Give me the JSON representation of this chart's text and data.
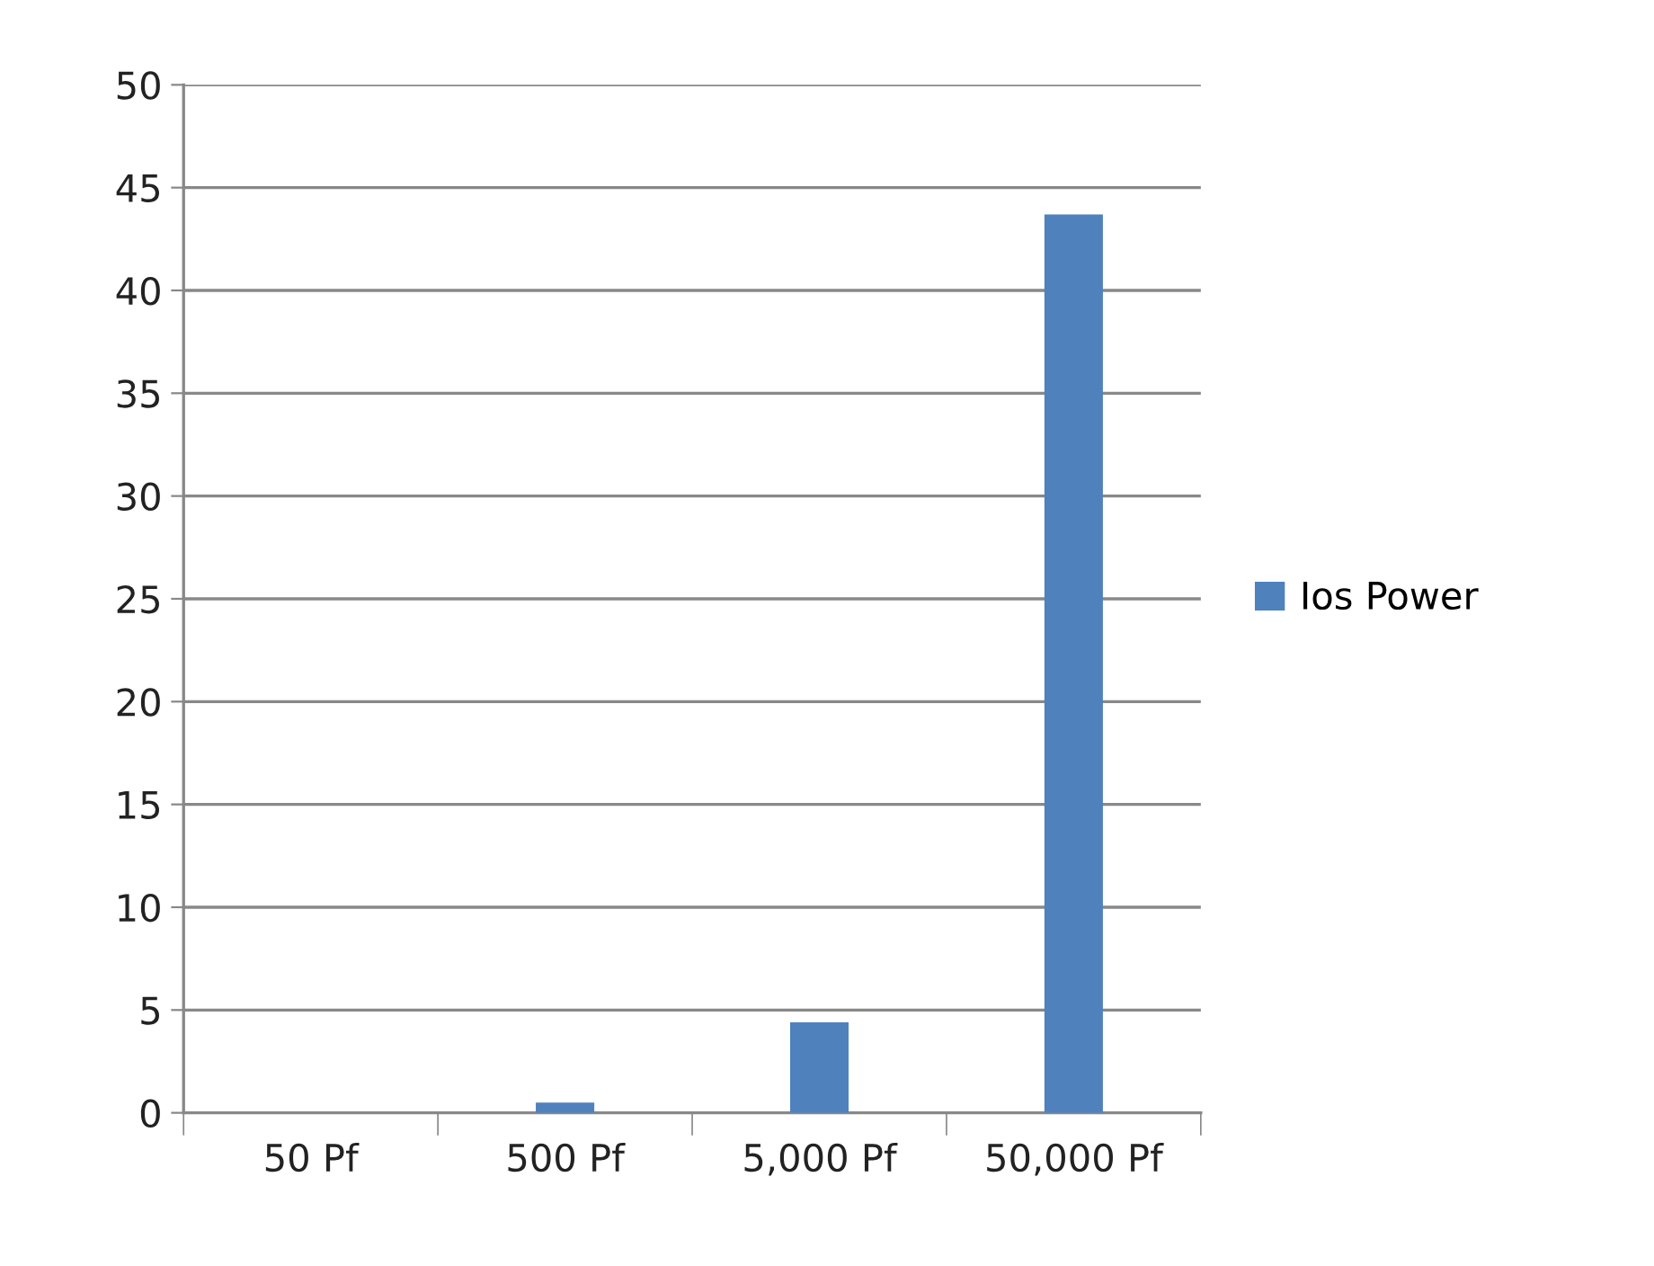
{
  "chart_data": {
    "type": "bar",
    "categories": [
      "50 Pf",
      "500 Pf",
      "5,000 Pf",
      "50,000 Pf"
    ],
    "series": [
      {
        "name": "Ios Power",
        "color": "#4f81bd",
        "values": [
          0,
          0.5,
          4.4,
          43.7
        ]
      }
    ],
    "ylim": [
      0,
      50
    ],
    "yticks": [
      0,
      5,
      10,
      15,
      20,
      25,
      30,
      35,
      40,
      45,
      50
    ],
    "grid": "y",
    "legend": "right"
  }
}
